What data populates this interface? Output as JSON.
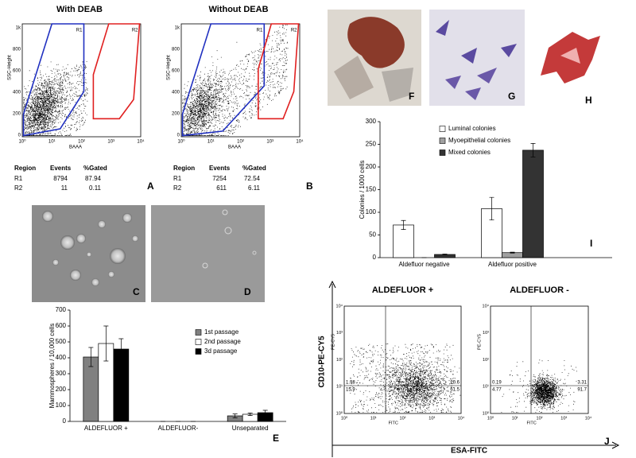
{
  "flow": {
    "A": {
      "title": "With DEAB",
      "y_label": "SSC-Height",
      "x_label": "BAAA",
      "yticks": [
        "1k",
        "800",
        "600",
        "400",
        "200",
        "0"
      ],
      "xticks": [
        "10⁰",
        "10¹",
        "10²",
        "10³",
        "10⁴"
      ],
      "gates": [
        "R1",
        "R2"
      ],
      "table": {
        "header": [
          "Region",
          "Events",
          "%Gated"
        ],
        "rows": [
          [
            "R1",
            8794,
            87.94
          ],
          [
            "R2",
            11,
            0.11
          ]
        ]
      },
      "letter": "A"
    },
    "B": {
      "title": "Without DEAB",
      "y_label": "SSC-Height",
      "x_label": "BAAA",
      "yticks": [
        "1k",
        "800",
        "600",
        "400",
        "200",
        "0"
      ],
      "xticks": [
        "10⁰",
        "10¹",
        "10²",
        "10³",
        "10⁴"
      ],
      "gates": [
        "R1",
        "R2"
      ],
      "table": {
        "header": [
          "Region",
          "Events",
          "%Gated"
        ],
        "rows": [
          [
            "R1",
            7254,
            72.54
          ],
          [
            "R2",
            611,
            6.11
          ]
        ]
      },
      "letter": "B"
    }
  },
  "photo_letters": [
    "C",
    "D",
    "F",
    "G",
    "H"
  ],
  "panel_J": {
    "letter": "J",
    "y_label": "CD10-PE-CY5",
    "x_label": "ESA-FITC",
    "ticks": [
      "10⁰",
      "10¹",
      "10²",
      "10³",
      "10⁴"
    ],
    "plots": [
      {
        "title": "ALDEFLUOR +",
        "color": "#e02020",
        "y_label": "PE-CY5",
        "x_label": "FITC",
        "quadrants": [
          1.98,
          20.6,
          15.9,
          61.5
        ]
      },
      {
        "title": "ALDEFLUOR -",
        "color": "#1a1acc",
        "y_label": "PE-CY5",
        "x_label": "FITC",
        "quadrants": [
          0.19,
          3.31,
          4.77,
          91.7
        ]
      }
    ]
  },
  "chart_data": [
    {
      "type": "bar",
      "panel_label": "E",
      "y_label": "Mammospheres / 10,000 cells",
      "categories": [
        "ALDEFLUOR +",
        "ALDEFLUOR-",
        "Unseparated"
      ],
      "series": [
        {
          "name": "1st passage",
          "color": "#808080",
          "values": [
            405,
            0,
            35
          ],
          "errors": [
            60,
            0,
            12
          ]
        },
        {
          "name": "2nd passage",
          "color": "#ffffff",
          "values": [
            490,
            0,
            45
          ],
          "errors": [
            110,
            0,
            8
          ]
        },
        {
          "name": "3d passage",
          "color": "#000000",
          "values": [
            455,
            0,
            55
          ],
          "errors": [
            65,
            0,
            15
          ]
        }
      ],
      "ylim": [
        0,
        700
      ],
      "yticks": [
        0,
        100,
        200,
        300,
        400,
        500,
        600,
        700
      ]
    },
    {
      "type": "bar",
      "panel_label": "I",
      "y_label": "Colonies / 1000 cells",
      "categories": [
        "Aldefluor negative",
        "Aldefluor positive"
      ],
      "series": [
        {
          "name": "Luminal colonies",
          "color": "#ffffff",
          "values": [
            72,
            108
          ],
          "errors": [
            10,
            25
          ]
        },
        {
          "name": "Myoepithelial colonies",
          "color": "#a0a0a0",
          "values": [
            0,
            11
          ],
          "errors": [
            0,
            1
          ]
        },
        {
          "name": "Mixed colonies",
          "color": "#333333",
          "values": [
            7,
            237
          ],
          "errors": [
            1,
            15
          ]
        }
      ],
      "ylim": [
        0,
        300
      ],
      "yticks": [
        0,
        50,
        100,
        150,
        200,
        250,
        300
      ]
    }
  ]
}
